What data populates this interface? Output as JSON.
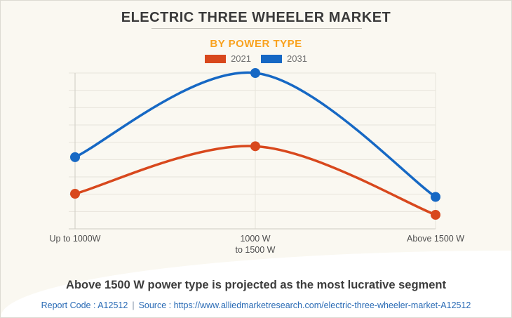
{
  "title": "ELECTRIC THREE WHEELER MARKET",
  "subtitle": "BY POWER TYPE",
  "legend": [
    {
      "label": "2021",
      "color": "#D8481D"
    },
    {
      "label": "2031",
      "color": "#1668C4"
    }
  ],
  "x_axis": {
    "categories": [
      {
        "lines": [
          "Up to 1000W"
        ]
      },
      {
        "lines": [
          "1000 W",
          "to 1500 W"
        ]
      },
      {
        "lines": [
          "Above 1500 W"
        ]
      }
    ]
  },
  "footer": {
    "headline": "Above 1500 W power type is projected as the most lucrative segment",
    "report_code": "Report Code : A12512",
    "separator": "|",
    "source_prefix": "Source :",
    "source_url": "https://www.alliedmarketresearch.com/electric-three-wheeler-market-A12512"
  },
  "colors": {
    "background": "#FAF8F1",
    "subtitle_orange": "#F9A21E",
    "series_2021": "#D8481D",
    "series_2031": "#1668C4",
    "link_blue": "#2A6BB5",
    "gridline": "#E7E4DB",
    "axis": "#CFCCC4"
  },
  "chart_data": {
    "type": "line",
    "title": "ELECTRIC THREE WHEELER MARKET",
    "subtitle": "BY POWER TYPE",
    "categories": [
      "Up to 1000W",
      "1000 W to 1500 W",
      "Above 1500 W"
    ],
    "series": [
      {
        "name": "2021",
        "color": "#D8481D",
        "values": [
          22.5,
          53,
          9
        ]
      },
      {
        "name": "2031",
        "color": "#1668C4",
        "values": [
          46,
          100,
          20.5
        ]
      }
    ],
    "xlabel": "",
    "ylabel": "",
    "ylim": [
      0,
      100
    ],
    "grid": true,
    "y_axis_labels_visible": false,
    "legend_position": "top",
    "marker": "circle",
    "smooth": true
  }
}
